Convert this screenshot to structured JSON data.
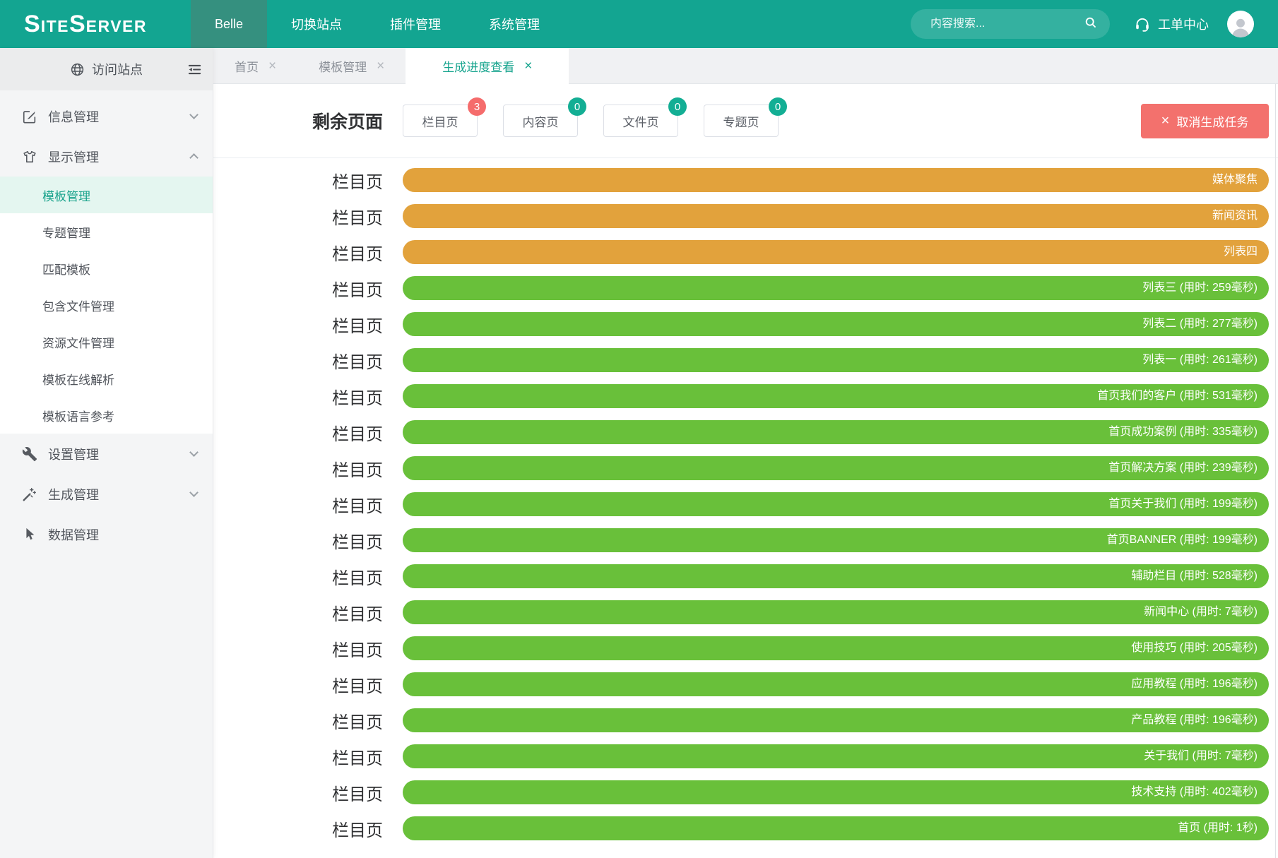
{
  "colors": {
    "navbar_teal": "#13a591",
    "navbar_active_item": "#35907f",
    "sidebar_active_text": "#18a28b",
    "bar_running_orange": "#e2a23c",
    "bar_done_green": "#69c03a",
    "cancel_red": "#f3716d",
    "badge_red": "#f56c6c",
    "badge_teal": "#13ae94"
  },
  "navbar": {
    "logo_parts": [
      "S",
      "ITE",
      "S",
      "ERVER"
    ],
    "items": [
      {
        "key": "belle",
        "label": "Belle",
        "active": true
      },
      {
        "key": "switch-site",
        "label": "切换站点",
        "active": false
      },
      {
        "key": "plugin-admin",
        "label": "插件管理",
        "active": false
      },
      {
        "key": "system-admin",
        "label": "系统管理",
        "active": false
      }
    ],
    "search": {
      "placeholder": "内容搜索..."
    },
    "work_order_label": "工单中心"
  },
  "sidebar": {
    "visit_site_label": "访问站点",
    "menu": [
      {
        "key": "info-admin",
        "label": "信息管理",
        "icon": "edit-icon",
        "chevron": "down"
      },
      {
        "key": "display-admin",
        "label": "显示管理",
        "icon": "tshirt-icon",
        "chevron": "up",
        "children": [
          {
            "key": "template-admin",
            "label": "模板管理",
            "active": true
          },
          {
            "key": "special-admin",
            "label": "专题管理",
            "active": false
          },
          {
            "key": "match-template",
            "label": "匹配模板",
            "active": false
          },
          {
            "key": "include-file-admin",
            "label": "包含文件管理",
            "active": false
          },
          {
            "key": "resource-file-admin",
            "label": "资源文件管理",
            "active": false
          },
          {
            "key": "template-online-parse",
            "label": "模板在线解析",
            "active": false
          },
          {
            "key": "template-language-ref",
            "label": "模板语言参考",
            "active": false
          }
        ]
      },
      {
        "key": "settings-admin",
        "label": "设置管理",
        "icon": "wrench-icon",
        "chevron": "down"
      },
      {
        "key": "generate-admin",
        "label": "生成管理",
        "icon": "wand-icon",
        "chevron": "down"
      },
      {
        "key": "data-admin",
        "label": "数据管理",
        "icon": "cursor-icon",
        "chevron": ""
      }
    ]
  },
  "tabs": [
    {
      "key": "home",
      "label": "首页",
      "active": false
    },
    {
      "key": "template-admin",
      "label": "模板管理",
      "active": false
    },
    {
      "key": "generate-progress",
      "label": "生成进度查看",
      "active": true
    }
  ],
  "main": {
    "title": "剩余页面",
    "counters": [
      {
        "key": "channel-page",
        "label": "栏目页",
        "count": "3",
        "badge_color": "#f56c6c"
      },
      {
        "key": "content-page",
        "label": "内容页",
        "count": "0",
        "badge_color": "#13ae94"
      },
      {
        "key": "file-page",
        "label": "文件页",
        "count": "0",
        "badge_color": "#13ae94"
      },
      {
        "key": "special-page",
        "label": "专题页",
        "count": "0",
        "badge_color": "#13ae94"
      }
    ],
    "cancel_button_label": "取消生成任务",
    "progress": [
      {
        "type_label": "栏目页",
        "text": "媒体聚焦",
        "status": "running"
      },
      {
        "type_label": "栏目页",
        "text": "新闻资讯",
        "status": "running"
      },
      {
        "type_label": "栏目页",
        "text": "列表四",
        "status": "running"
      },
      {
        "type_label": "栏目页",
        "text": "列表三 (用时: 259毫秒)",
        "status": "done"
      },
      {
        "type_label": "栏目页",
        "text": "列表二 (用时: 277毫秒)",
        "status": "done"
      },
      {
        "type_label": "栏目页",
        "text": "列表一 (用时: 261毫秒)",
        "status": "done"
      },
      {
        "type_label": "栏目页",
        "text": "首页我们的客户 (用时: 531毫秒)",
        "status": "done"
      },
      {
        "type_label": "栏目页",
        "text": "首页成功案例 (用时: 335毫秒)",
        "status": "done"
      },
      {
        "type_label": "栏目页",
        "text": "首页解决方案 (用时: 239毫秒)",
        "status": "done"
      },
      {
        "type_label": "栏目页",
        "text": "首页关于我们 (用时: 199毫秒)",
        "status": "done"
      },
      {
        "type_label": "栏目页",
        "text": "首页BANNER (用时: 199毫秒)",
        "status": "done"
      },
      {
        "type_label": "栏目页",
        "text": "辅助栏目 (用时: 528毫秒)",
        "status": "done"
      },
      {
        "type_label": "栏目页",
        "text": "新闻中心 (用时: 7毫秒)",
        "status": "done"
      },
      {
        "type_label": "栏目页",
        "text": "使用技巧 (用时: 205毫秒)",
        "status": "done"
      },
      {
        "type_label": "栏目页",
        "text": "应用教程 (用时: 196毫秒)",
        "status": "done"
      },
      {
        "type_label": "栏目页",
        "text": "产品教程 (用时: 196毫秒)",
        "status": "done"
      },
      {
        "type_label": "栏目页",
        "text": "关于我们 (用时: 7毫秒)",
        "status": "done"
      },
      {
        "type_label": "栏目页",
        "text": "技术支持 (用时: 402毫秒)",
        "status": "done"
      },
      {
        "type_label": "栏目页",
        "text": "首页 (用时: 1秒)",
        "status": "done"
      }
    ]
  }
}
